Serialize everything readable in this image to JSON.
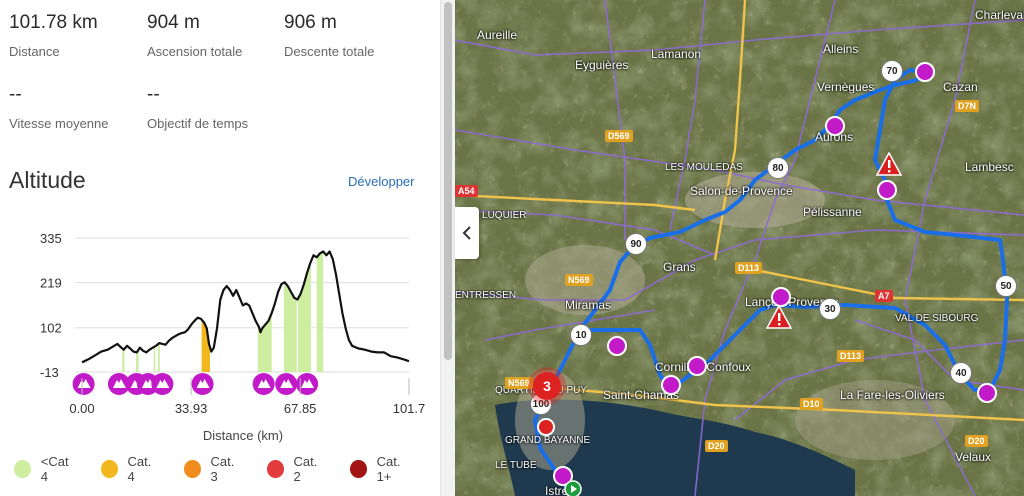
{
  "stats": {
    "distance": {
      "value": "101.78 km",
      "label": "Distance"
    },
    "ascent": {
      "value": "904 m",
      "label": "Ascension totale"
    },
    "descent": {
      "value": "906 m",
      "label": "Descente totale"
    },
    "avg_speed": {
      "value": "--",
      "label": "Vitesse moyenne"
    },
    "time_goal": {
      "value": "--",
      "label": "Objectif de temps"
    }
  },
  "altitude": {
    "title": "Altitude",
    "expand_label": "Développer"
  },
  "chart_data": {
    "type": "area",
    "xlabel": "Distance (km)",
    "ylabel": "",
    "ylim": [
      -13,
      335
    ],
    "xlim": [
      0,
      101.7
    ],
    "y_ticks": [
      "335",
      "219",
      "102",
      "-13"
    ],
    "x_ticks": [
      "0.00",
      "33.93",
      "67.85",
      "101.7"
    ],
    "grid": true,
    "profile": [
      [
        0,
        12
      ],
      [
        2,
        20
      ],
      [
        4,
        30
      ],
      [
        6,
        40
      ],
      [
        8,
        45
      ],
      [
        10,
        55
      ],
      [
        11,
        60
      ],
      [
        12,
        52
      ],
      [
        13,
        45
      ],
      [
        14,
        55
      ],
      [
        15,
        48
      ],
      [
        16,
        40
      ],
      [
        17,
        38
      ],
      [
        18,
        50
      ],
      [
        19,
        42
      ],
      [
        20,
        38
      ],
      [
        21,
        45
      ],
      [
        22,
        50
      ],
      [
        23,
        55
      ],
      [
        24,
        62
      ],
      [
        25,
        60
      ],
      [
        26,
        58
      ],
      [
        27,
        68
      ],
      [
        28,
        75
      ],
      [
        29,
        80
      ],
      [
        30,
        85
      ],
      [
        31,
        88
      ],
      [
        32,
        90
      ],
      [
        33,
        98
      ],
      [
        34,
        110
      ],
      [
        35,
        120
      ],
      [
        36,
        128
      ],
      [
        37,
        125
      ],
      [
        38,
        115
      ],
      [
        38.8,
        100
      ],
      [
        39.5,
        60
      ],
      [
        40.2,
        40
      ],
      [
        41,
        50
      ],
      [
        42,
        100
      ],
      [
        43,
        175
      ],
      [
        44,
        200
      ],
      [
        45,
        210
      ],
      [
        46,
        200
      ],
      [
        47,
        185
      ],
      [
        48,
        200
      ],
      [
        49,
        180
      ],
      [
        50,
        160
      ],
      [
        51,
        165
      ],
      [
        52,
        160
      ],
      [
        53,
        140
      ],
      [
        54,
        120
      ],
      [
        55,
        105
      ],
      [
        55.5,
        90
      ],
      [
        56,
        100
      ],
      [
        57,
        110
      ],
      [
        58,
        120
      ],
      [
        59,
        140
      ],
      [
        60,
        165
      ],
      [
        61,
        195
      ],
      [
        62,
        215
      ],
      [
        63,
        220
      ],
      [
        64,
        210
      ],
      [
        65,
        195
      ],
      [
        66,
        180
      ],
      [
        67,
        175
      ],
      [
        68,
        190
      ],
      [
        69,
        215
      ],
      [
        70,
        245
      ],
      [
        71,
        270
      ],
      [
        72,
        290
      ],
      [
        73,
        285
      ],
      [
        74,
        295
      ],
      [
        75,
        300
      ],
      [
        76,
        290
      ],
      [
        77,
        300
      ],
      [
        78,
        280
      ],
      [
        79,
        240
      ],
      [
        80,
        190
      ],
      [
        81,
        140
      ],
      [
        82,
        100
      ],
      [
        83,
        70
      ],
      [
        84,
        55
      ],
      [
        86,
        48
      ],
      [
        88,
        45
      ],
      [
        90,
        40
      ],
      [
        92,
        38
      ],
      [
        94,
        38
      ],
      [
        96,
        28
      ],
      [
        98,
        25
      ],
      [
        100,
        20
      ],
      [
        101.7,
        15
      ]
    ],
    "climb_highlights": [
      {
        "category": "<Cat 4",
        "x": [
          12.5,
          13.2
        ]
      },
      {
        "category": "<Cat 4",
        "x": [
          16.8,
          17.6
        ]
      },
      {
        "category": "<Cat 4",
        "x": [
          22.3,
          22.8
        ]
      },
      {
        "category": "<Cat 4",
        "x": [
          23.6,
          24.2
        ]
      },
      {
        "category": "Cat. 4",
        "x": [
          37.2,
          39.8
        ]
      },
      {
        "category": "<Cat 4",
        "x": [
          54.7,
          59.0
        ]
      },
      {
        "category": "<Cat 4",
        "x": [
          62.8,
          66.8
        ]
      },
      {
        "category": "<Cat 4",
        "x": [
          67.2,
          71.2
        ]
      },
      {
        "category": "<Cat 4",
        "x": [
          73.0,
          75.0
        ]
      }
    ],
    "climb_markers_x": [
      0.5,
      11.5,
      17.0,
      20.5,
      25.0,
      37.5,
      56.5,
      63.5,
      70.0
    ],
    "legend": [
      {
        "label": "<Cat 4",
        "color": "#cdeea0"
      },
      {
        "label": "Cat. 4",
        "color": "#f2b71d"
      },
      {
        "label": "Cat. 3",
        "color": "#f28c1e"
      },
      {
        "label": "Cat. 2",
        "color": "#e23b3b"
      },
      {
        "label": "Cat. 1+",
        "color": "#a31414"
      }
    ],
    "colors": {
      "line": "#111111",
      "marker": "#c21ac9",
      "grid": "#dddddd"
    }
  },
  "map": {
    "places": [
      {
        "name": "Aureille"
      },
      {
        "name": "Lamanon"
      },
      {
        "name": "Eyguières"
      },
      {
        "name": "Alleins"
      },
      {
        "name": "Charleval"
      },
      {
        "name": "Vernègues"
      },
      {
        "name": "Cazan"
      },
      {
        "name": "Aurons"
      },
      {
        "name": "LES MOULEDAS"
      },
      {
        "name": "Salon-de-Provence"
      },
      {
        "name": "Pélissanne"
      },
      {
        "name": "LE LUQUIER"
      },
      {
        "name": "Grans"
      },
      {
        "name": "ENTRESSEN"
      },
      {
        "name": "Miramas"
      },
      {
        "name": "Lançon-Provence"
      },
      {
        "name": "VAL DE SIBOURG"
      },
      {
        "name": "Cornillon-Confoux"
      },
      {
        "name": "Saint-Chamas"
      },
      {
        "name": "La Fare-les-Oliviers"
      },
      {
        "name": "QUARTIER DU PUY"
      },
      {
        "name": "GRAND BAYANNE"
      },
      {
        "name": "LE TUBÉ"
      },
      {
        "name": "Velaux"
      },
      {
        "name": "Istres"
      },
      {
        "name": "Lambesc"
      }
    ],
    "roads": [
      "D569",
      "D7N",
      "A54",
      "N569",
      "D113",
      "A7",
      "D10",
      "D20",
      "N569",
      "D113",
      "D20"
    ],
    "km_markers": [
      "70",
      "80",
      "90",
      "10",
      "30",
      "40",
      "50",
      "100"
    ],
    "cluster_count": "3"
  }
}
